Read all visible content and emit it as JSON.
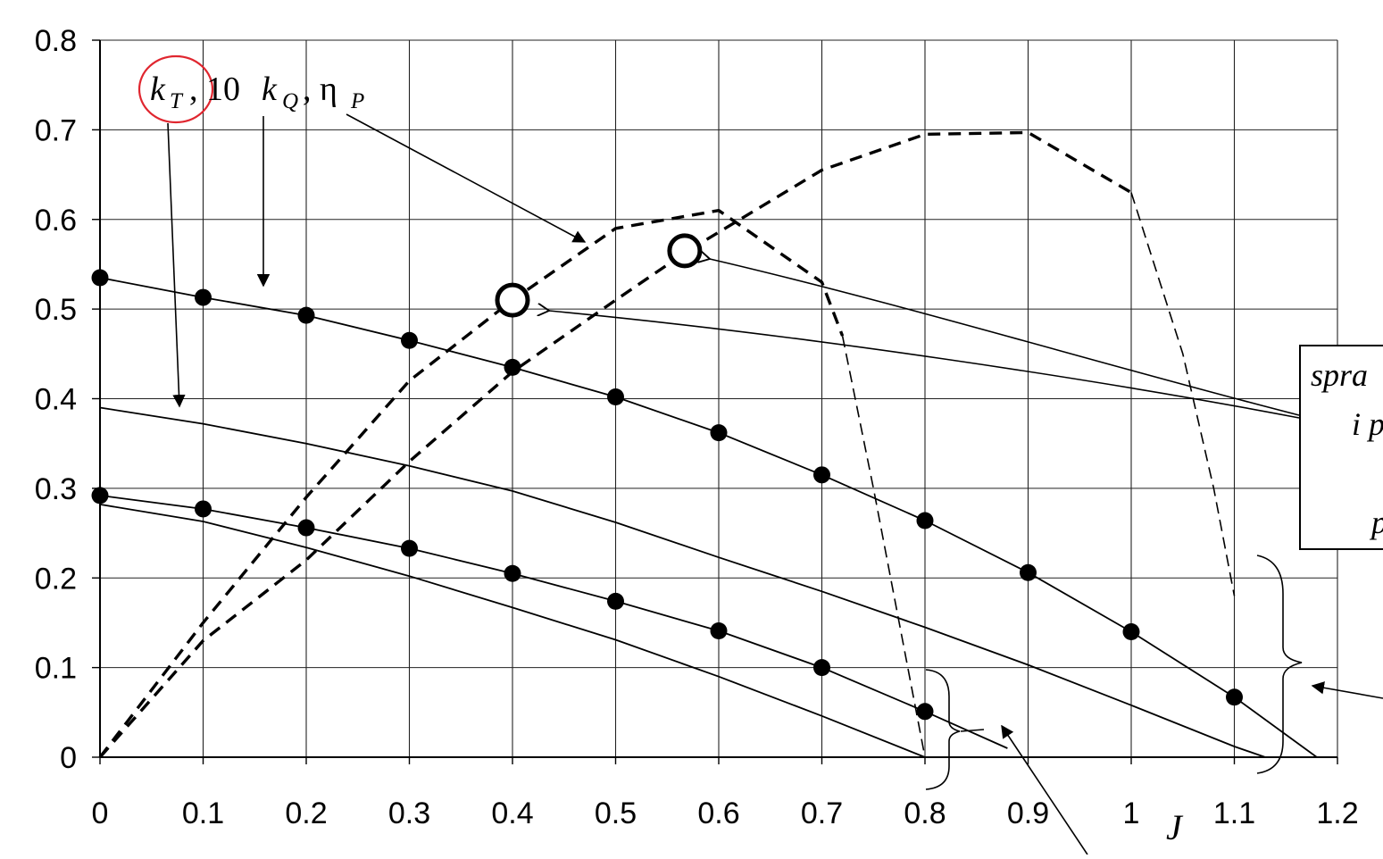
{
  "chart_data": {
    "type": "line",
    "title": "",
    "xlabel": "J",
    "ylabel": "",
    "xlim": [
      0,
      1.2
    ],
    "ylim": [
      0,
      0.8
    ],
    "grid": true,
    "x_ticks": [
      "0",
      "0.1",
      "0.2",
      "0.3",
      "0.4",
      "0.5",
      "0.6",
      "0.7",
      "0.8",
      "0.9",
      "1",
      "1.1",
      "1.2"
    ],
    "y_ticks": [
      "0",
      "0.1",
      "0.2",
      "0.3",
      "0.4",
      "0.5",
      "0.6",
      "0.7",
      "0.8"
    ],
    "series": [
      {
        "style": "solid-markers",
        "points": [
          [
            0,
            0.535
          ],
          [
            0.1,
            0.513
          ],
          [
            0.2,
            0.493
          ],
          [
            0.3,
            0.465
          ],
          [
            0.4,
            0.435
          ],
          [
            0.5,
            0.402
          ],
          [
            0.6,
            0.362
          ],
          [
            0.7,
            0.315
          ],
          [
            0.8,
            0.264
          ],
          [
            0.9,
            0.206
          ],
          [
            1.0,
            0.14
          ],
          [
            1.1,
            0.067
          ],
          [
            1.18,
            0.0
          ]
        ]
      },
      {
        "style": "solid-markers",
        "points": [
          [
            0,
            0.292
          ],
          [
            0.1,
            0.277
          ],
          [
            0.2,
            0.256
          ],
          [
            0.3,
            0.233
          ],
          [
            0.4,
            0.205
          ],
          [
            0.5,
            0.174
          ],
          [
            0.6,
            0.141
          ],
          [
            0.7,
            0.1
          ],
          [
            0.8,
            0.051
          ],
          [
            0.88,
            0.01
          ]
        ]
      },
      {
        "style": "solid",
        "points": [
          [
            0,
            0.39
          ],
          [
            0.1,
            0.372
          ],
          [
            0.2,
            0.35
          ],
          [
            0.3,
            0.325
          ],
          [
            0.4,
            0.297
          ],
          [
            0.5,
            0.262
          ],
          [
            0.6,
            0.223
          ],
          [
            0.7,
            0.185
          ],
          [
            0.8,
            0.145
          ],
          [
            0.9,
            0.103
          ],
          [
            1.0,
            0.058
          ],
          [
            1.1,
            0.012
          ],
          [
            1.13,
            0.0
          ]
        ]
      },
      {
        "style": "solid",
        "points": [
          [
            0,
            0.282
          ],
          [
            0.1,
            0.263
          ],
          [
            0.2,
            0.234
          ],
          [
            0.3,
            0.202
          ],
          [
            0.4,
            0.167
          ],
          [
            0.5,
            0.131
          ],
          [
            0.6,
            0.09
          ],
          [
            0.7,
            0.046
          ],
          [
            0.8,
            0.0
          ]
        ]
      },
      {
        "style": "dashed-thick",
        "points": [
          [
            0,
            0.0
          ],
          [
            0.1,
            0.15
          ],
          [
            0.2,
            0.29
          ],
          [
            0.3,
            0.42
          ],
          [
            0.4,
            0.51
          ],
          [
            0.5,
            0.59
          ],
          [
            0.6,
            0.61
          ],
          [
            0.7,
            0.53
          ],
          [
            0.72,
            0.47
          ]
        ]
      },
      {
        "style": "dashed-thin",
        "points": [
          [
            0.72,
            0.47
          ],
          [
            0.75,
            0.3
          ],
          [
            0.78,
            0.12
          ],
          [
            0.8,
            0.0
          ]
        ]
      },
      {
        "style": "dashed-thick",
        "points": [
          [
            0,
            0.0
          ],
          [
            0.1,
            0.13
          ],
          [
            0.2,
            0.22
          ],
          [
            0.3,
            0.33
          ],
          [
            0.4,
            0.43
          ],
          [
            0.5,
            0.51
          ],
          [
            0.57,
            0.565
          ],
          [
            0.7,
            0.655
          ],
          [
            0.8,
            0.695
          ],
          [
            0.9,
            0.697
          ],
          [
            1.0,
            0.63
          ]
        ]
      },
      {
        "style": "dashed-thin",
        "points": [
          [
            1.0,
            0.63
          ],
          [
            1.05,
            0.45
          ],
          [
            1.08,
            0.3
          ],
          [
            1.1,
            0.18
          ]
        ]
      }
    ],
    "max_efficiency_points": [
      [
        0.4,
        0.51
      ],
      [
        0.567,
        0.565
      ]
    ],
    "annotations": {
      "series_label_kt": "k",
      "series_label_kt_sub": "T",
      "series_label_sep1": ", 10",
      "series_label_kq": "k",
      "series_label_kq_sub": "Q",
      "series_label_sep2": ", η",
      "series_label_eta_sub": "P",
      "side_box_text": [
        "spra",
        "i p",
        "p"
      ]
    }
  }
}
